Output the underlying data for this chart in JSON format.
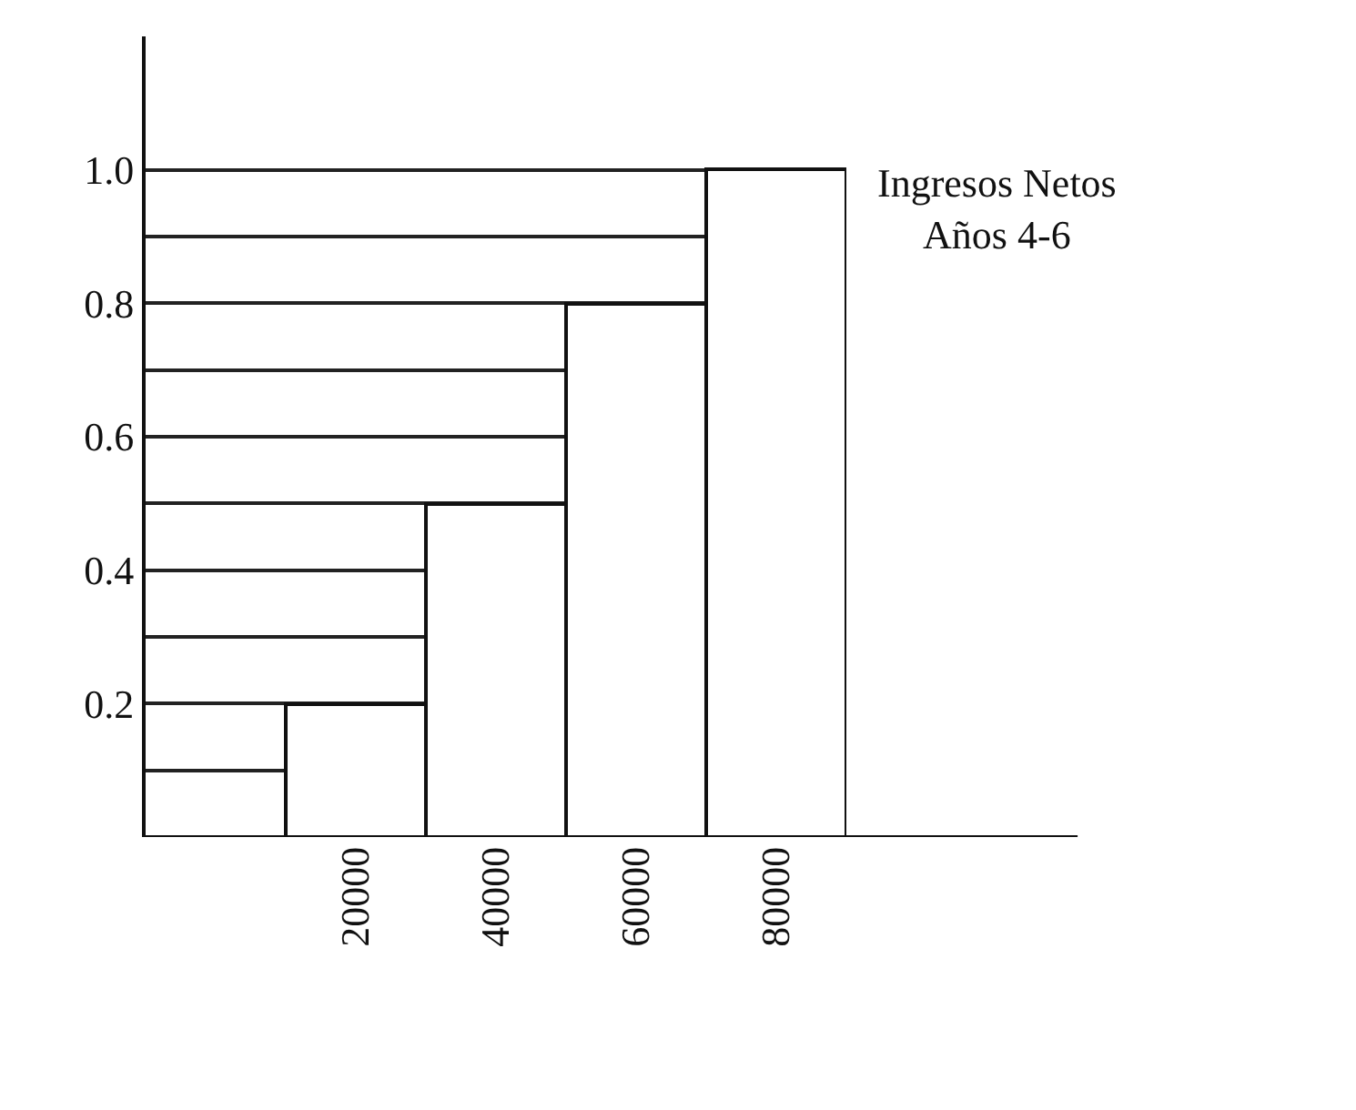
{
  "chart_data": {
    "type": "bar",
    "categories": [
      "20000",
      "40000",
      "60000",
      "80000"
    ],
    "values": [
      0.2,
      0.5,
      0.8,
      1.0
    ],
    "color": "#ffffff",
    "ylim": [
      0,
      1.2
    ],
    "yticks": [
      {
        "value": 0.1,
        "label": null
      },
      0.2,
      {
        "value": 0.3,
        "label": null
      },
      0.4,
      {
        "value": 0.5,
        "label": null
      },
      0.6,
      {
        "value": 0.7,
        "label": null
      },
      0.8,
      {
        "value": 0.9,
        "label": null
      },
      {
        "value": 1.0,
        "label": "1.0"
      }
    ],
    "grid": "y",
    "annotations": [
      "Ingresos Netos\nAños 4-6"
    ]
  }
}
